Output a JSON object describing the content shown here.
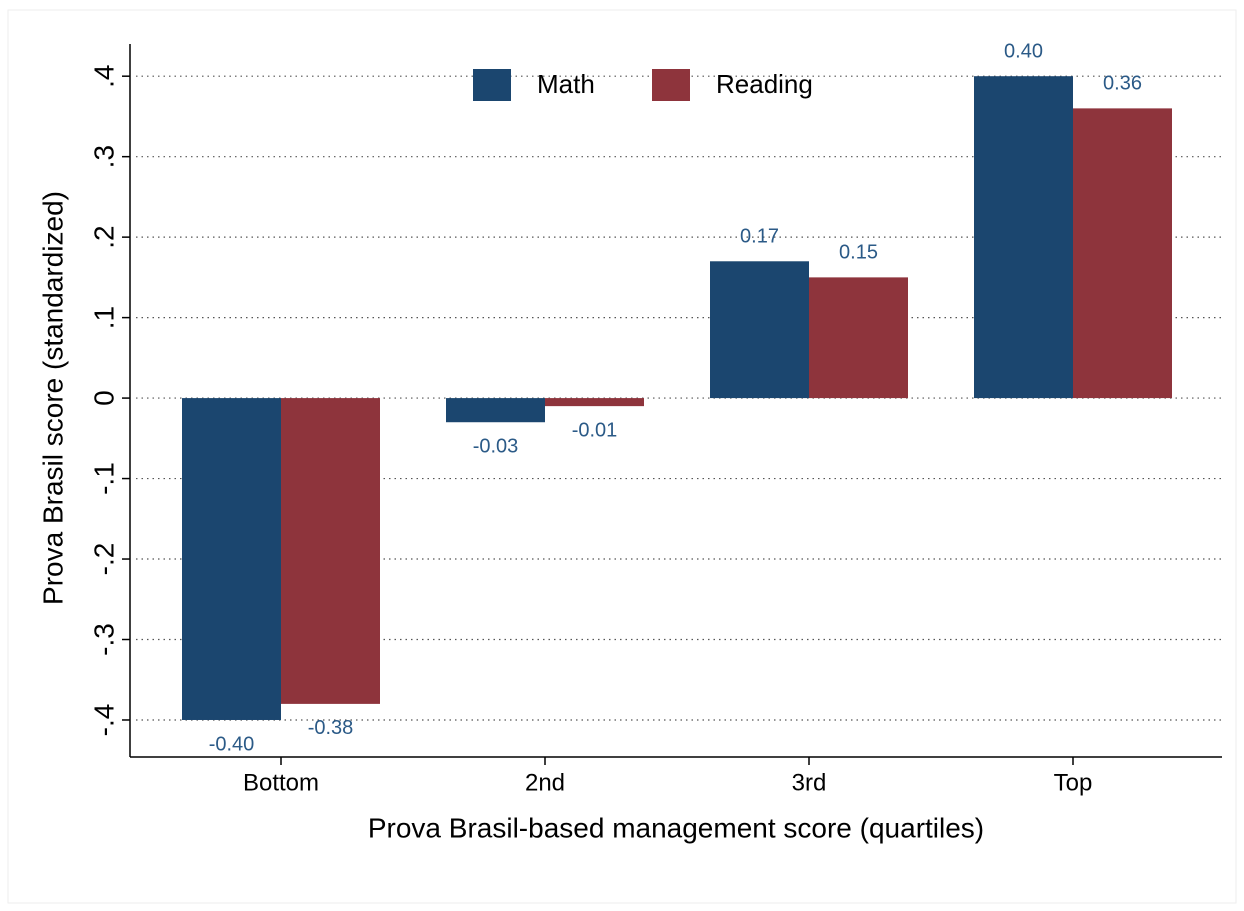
{
  "chart_data": {
    "type": "bar",
    "y_label": "Prova Brasil score (standardized)",
    "x_label": "Prova Brasil-based management score (quartiles)",
    "categories": [
      "Bottom",
      "2nd",
      "3rd",
      "Top"
    ],
    "series": [
      {
        "name": "Math",
        "color": "#1b466f",
        "values": [
          -0.4,
          -0.03,
          0.17,
          0.4
        ],
        "value_labels": [
          "-0.40",
          "-0.03",
          "0.17",
          "0.40"
        ]
      },
      {
        "name": "Reading",
        "color": "#8e343c",
        "values": [
          -0.38,
          -0.01,
          0.15,
          0.36
        ],
        "value_labels": [
          "-0.38",
          "-0.01",
          "0.15",
          "0.36"
        ]
      }
    ],
    "ylim": [
      -0.446,
      0.44
    ],
    "yticks": [
      {
        "value": -0.4,
        "label": "-.4"
      },
      {
        "value": -0.3,
        "label": "-.3"
      },
      {
        "value": -0.2,
        "label": "-.2"
      },
      {
        "value": -0.1,
        "label": "-.1"
      },
      0,
      {
        "value": 0.1,
        "label": ".1"
      },
      {
        "value": 0.2,
        "label": ".2"
      },
      {
        "value": 0.3,
        "label": ".3"
      },
      {
        "value": 0.4,
        "label": ".4"
      }
    ],
    "grid": true,
    "legend": "top"
  }
}
